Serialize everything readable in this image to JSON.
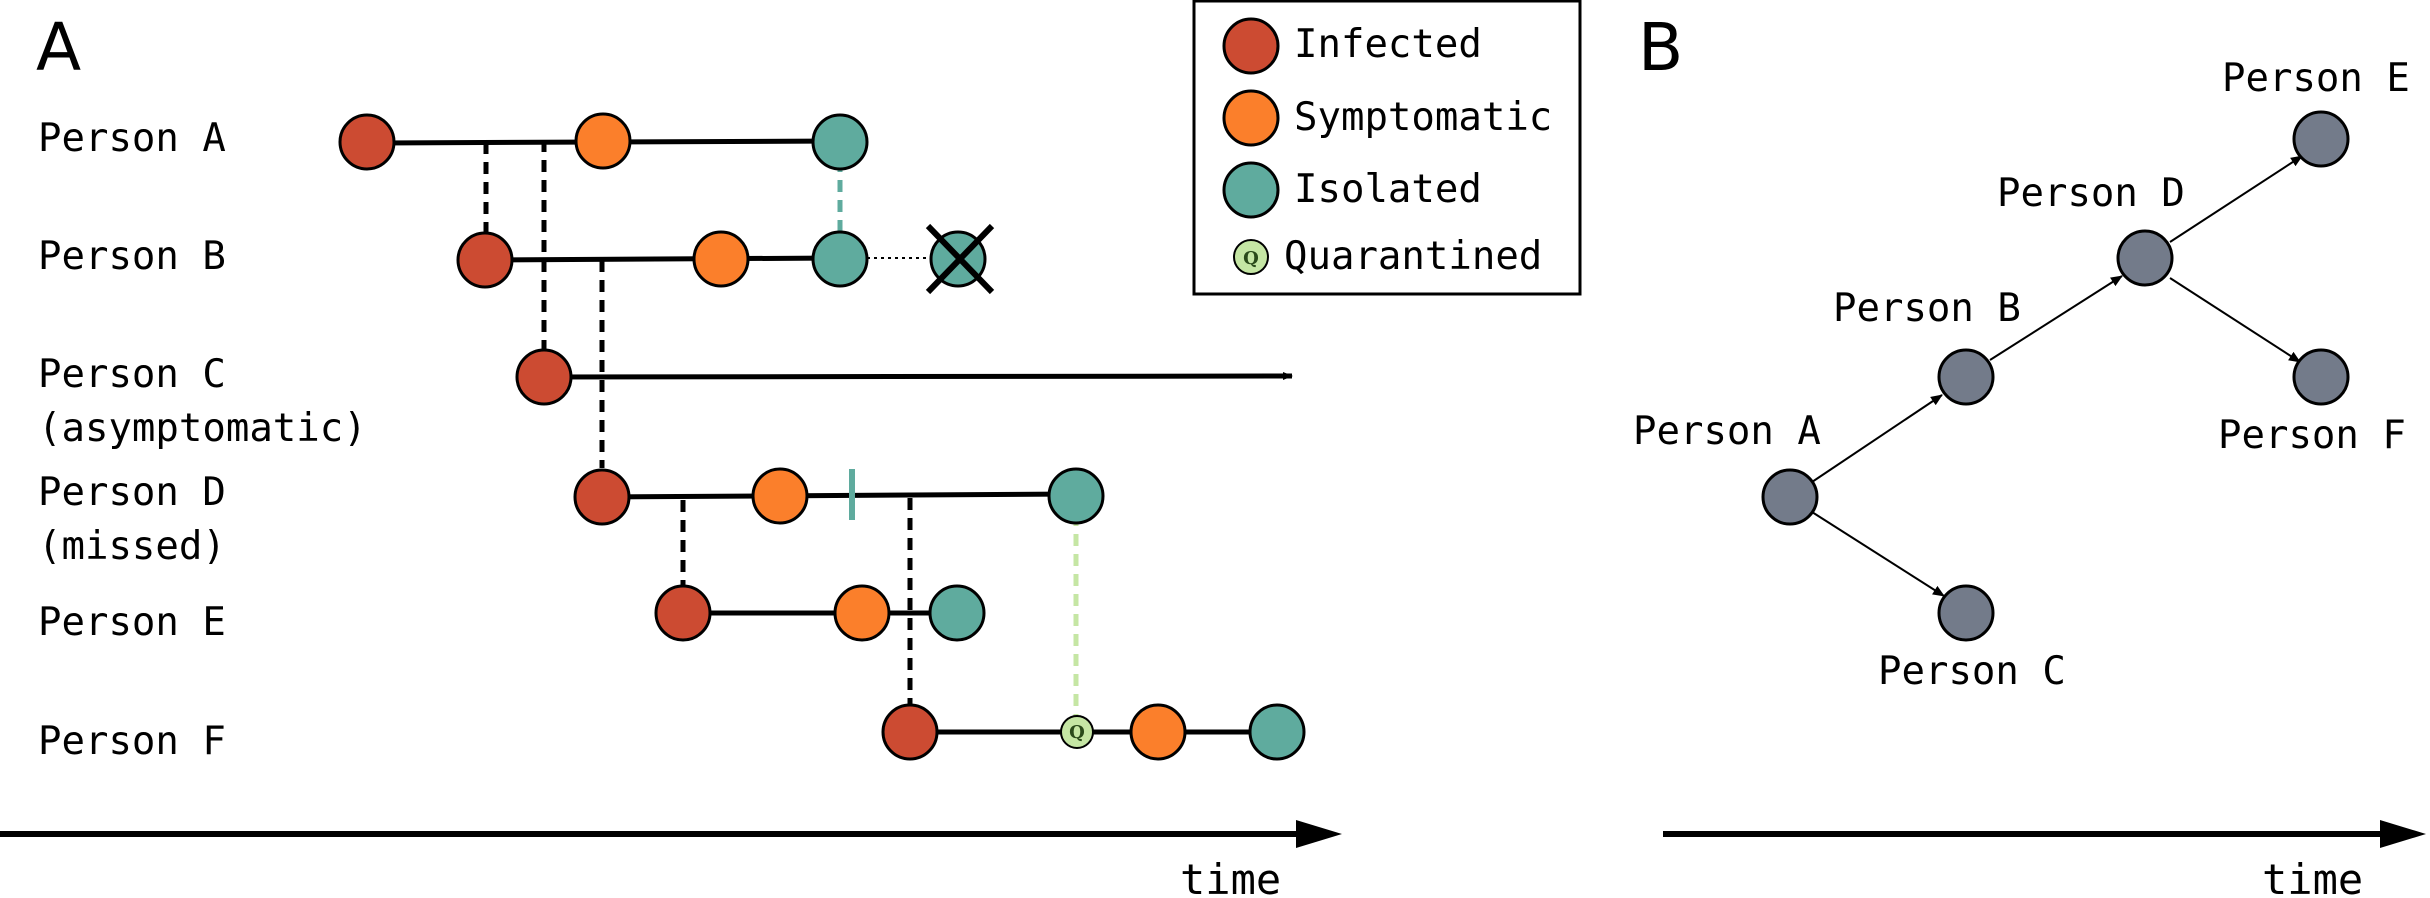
{
  "colors": {
    "infected": "#cc4b32",
    "symptomatic": "#fb7f2b",
    "isolated": "#5fab9e",
    "quarantined": "#c5e6a4",
    "tree_node": "#737b8a",
    "contact_line": "#000000",
    "isolation_link": "#5fab9e",
    "quarantine_link": "#c5e6a4"
  },
  "panel_a": {
    "letter": "A",
    "people": [
      {
        "id": "a",
        "label": "Person A"
      },
      {
        "id": "b",
        "label": "Person B"
      },
      {
        "id": "c",
        "label": "Person C",
        "sublabel": "(asymptomatic)"
      },
      {
        "id": "d",
        "label": "Person D",
        "sublabel": "(missed)"
      },
      {
        "id": "e",
        "label": "Person E"
      },
      {
        "id": "f",
        "label": "Person F"
      }
    ],
    "time_label": "time"
  },
  "legend": {
    "items": [
      {
        "state": "infected",
        "label": "Infected"
      },
      {
        "state": "symptomatic",
        "label": "Symptomatic"
      },
      {
        "state": "isolated",
        "label": "Isolated"
      },
      {
        "state": "quarantined",
        "label": "Quarantined",
        "symbol": "Q"
      }
    ]
  },
  "panel_b": {
    "letter": "B",
    "nodes": [
      {
        "id": "a",
        "label": "Person A"
      },
      {
        "id": "b",
        "label": "Person B"
      },
      {
        "id": "c",
        "label": "Person C"
      },
      {
        "id": "d",
        "label": "Person D"
      },
      {
        "id": "e",
        "label": "Person E"
      },
      {
        "id": "f",
        "label": "Person F"
      }
    ],
    "edges": [
      {
        "from": "a",
        "to": "b"
      },
      {
        "from": "a",
        "to": "c"
      },
      {
        "from": "b",
        "to": "d"
      },
      {
        "from": "d",
        "to": "e"
      },
      {
        "from": "d",
        "to": "f"
      }
    ],
    "time_label": "time"
  }
}
